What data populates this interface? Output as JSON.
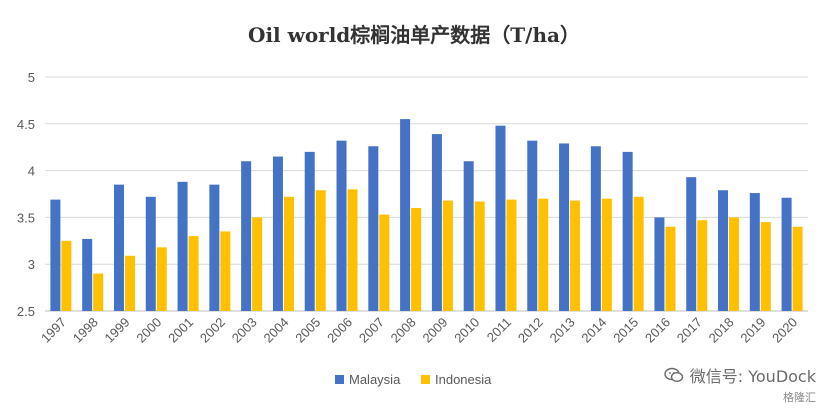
{
  "chart_data": {
    "type": "bar",
    "title": "Oil world棕榈油单产数据（T/ha）",
    "categories": [
      "1997",
      "1998",
      "1999",
      "2000",
      "2001",
      "2002",
      "2003",
      "2004",
      "2005",
      "2006",
      "2007",
      "2008",
      "2009",
      "2010",
      "2011",
      "2012",
      "2013",
      "2014",
      "2015",
      "2016",
      "2017",
      "2018",
      "2019",
      "2020"
    ],
    "series": [
      {
        "name": "Malaysia",
        "color": "#4472C4",
        "values": [
          3.69,
          3.27,
          3.85,
          3.72,
          3.88,
          3.85,
          4.1,
          4.15,
          4.2,
          4.32,
          4.26,
          4.55,
          4.39,
          4.1,
          4.48,
          4.32,
          4.29,
          4.26,
          4.2,
          3.5,
          3.93,
          3.79,
          3.76,
          3.71
        ]
      },
      {
        "name": "Indonesia",
        "color": "#FFC000",
        "values": [
          3.25,
          2.9,
          3.09,
          3.18,
          3.3,
          3.35,
          3.5,
          3.72,
          3.79,
          3.8,
          3.53,
          3.6,
          3.68,
          3.67,
          3.69,
          3.7,
          3.68,
          3.7,
          3.72,
          3.4,
          3.47,
          3.5,
          3.45,
          3.4
        ]
      }
    ],
    "ylim": [
      2.5,
      5
    ],
    "yticks": [
      "2.5",
      "3",
      "3.5",
      "4",
      "4.5",
      "5"
    ],
    "grid": true,
    "legend_position": "bottom-center"
  },
  "watermark": {
    "line1": "微信号: YouDock",
    "line2": "格隆汇"
  }
}
